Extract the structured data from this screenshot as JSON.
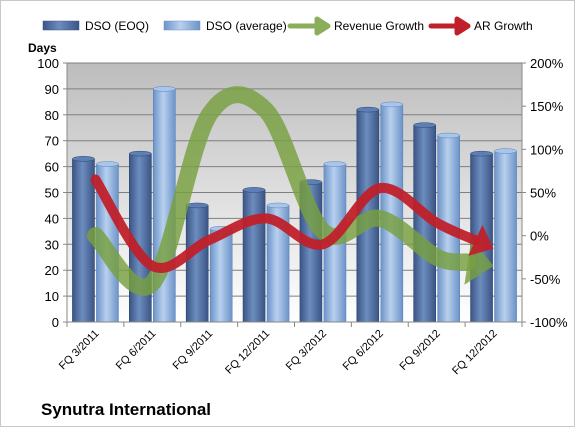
{
  "chart_data": {
    "type": "bar",
    "title": "Synutra International",
    "ylabel": "Days",
    "ylim": [
      0,
      100
    ],
    "y2lim": [
      -100,
      200
    ],
    "y_ticks": [
      "0",
      "10",
      "20",
      "30",
      "40",
      "50",
      "60",
      "70",
      "80",
      "90",
      "100"
    ],
    "y2_ticks": [
      "-100%",
      "-50%",
      "0%",
      "50%",
      "100%",
      "150%",
      "200%"
    ],
    "categories": [
      "FQ 3/2011",
      "FQ 6/2011",
      "FQ 9/2011",
      "FQ 12/2011",
      "FQ 3/2012",
      "FQ 6/2012",
      "FQ 9/2012",
      "FQ 12/2012"
    ],
    "grid": true,
    "legend_position": "top",
    "series": [
      {
        "name": "DSO (EOQ)",
        "type": "bar",
        "axis": "left",
        "color": "#4f6fa0",
        "values": [
          63,
          65,
          45,
          51,
          54,
          82,
          76,
          65
        ]
      },
      {
        "name": "DSO (average)",
        "type": "bar",
        "axis": "left",
        "color": "#8fb0dc",
        "values": [
          61,
          90,
          36,
          45,
          61,
          84,
          72,
          66
        ]
      },
      {
        "name": "Revenue Growth",
        "type": "line",
        "axis": "right",
        "color": "#77a040",
        "values": [
          0,
          -55,
          140,
          145,
          5,
          20,
          -25,
          -35
        ]
      },
      {
        "name": "AR Growth",
        "type": "line",
        "axis": "right",
        "color": "#c0202a",
        "values": [
          65,
          -35,
          -5,
          20,
          -10,
          55,
          15,
          -15
        ]
      }
    ]
  }
}
